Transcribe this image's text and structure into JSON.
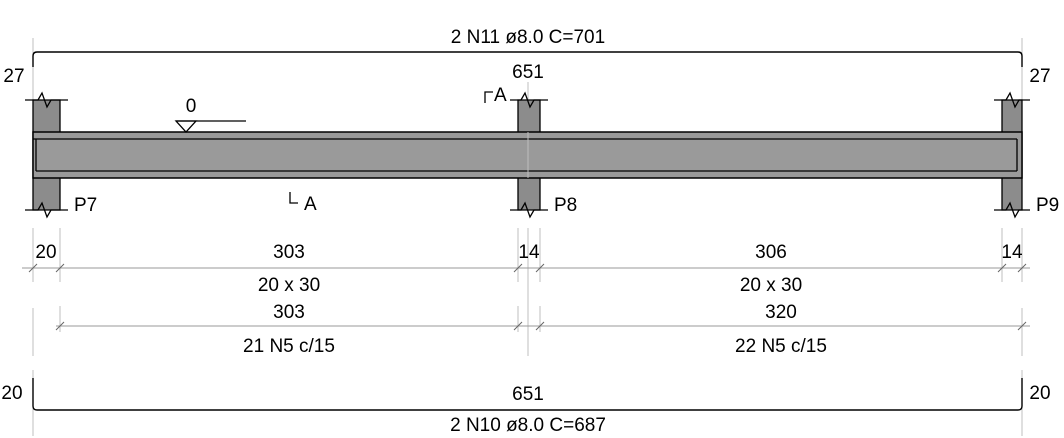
{
  "top_bar": {
    "label": "2 N11 ø8.0 C=701",
    "hook_left": "27",
    "hook_right": "27",
    "span": "651"
  },
  "bottom_bar": {
    "label": "2 N10 ø8.0 C=687",
    "hook_left": "20",
    "hook_right": "20",
    "span": "651"
  },
  "level_marker": "0",
  "section_mark": "A",
  "pillars": [
    "P7",
    "P8",
    "P9"
  ],
  "dimensions": {
    "support_widths": [
      "20",
      "14",
      "14"
    ],
    "spans": [
      "303",
      "306"
    ],
    "sections": [
      "20 x 30",
      "20 x 30"
    ],
    "stirrup_lengths": [
      "303",
      "320"
    ],
    "stirrup_labels": [
      "21 N5 c/15",
      "22 N5 c/15"
    ]
  }
}
